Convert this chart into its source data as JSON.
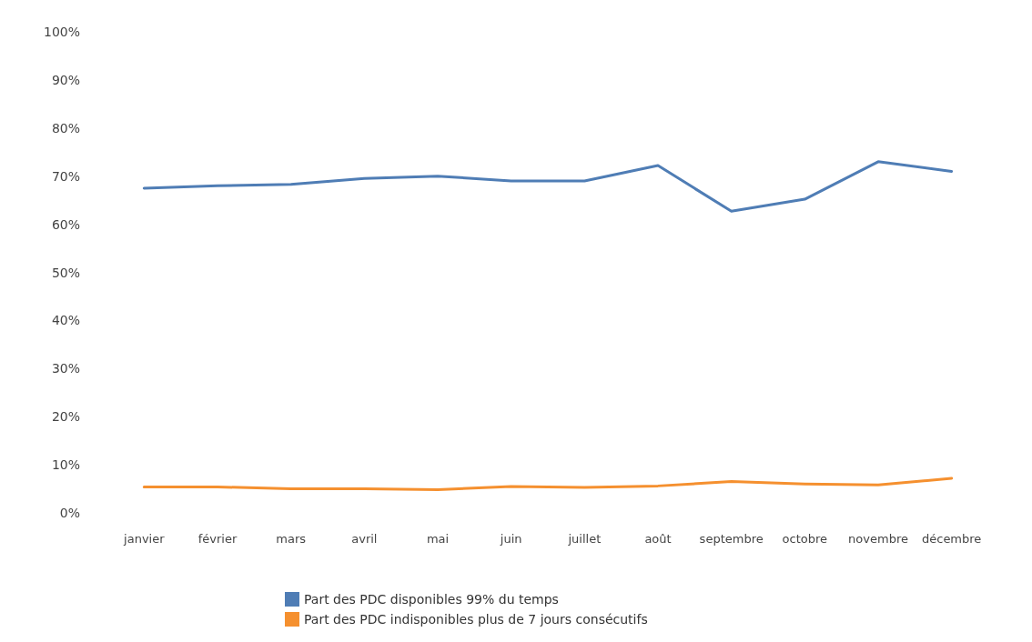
{
  "chart_data": {
    "type": "line",
    "categories": [
      "janvier",
      "février",
      "mars",
      "avril",
      "mai",
      "juin",
      "juillet",
      "août",
      "septembre",
      "octobre",
      "novembre",
      "décembre"
    ],
    "series": [
      {
        "name": "Part des PDC disponibles 99% du temps",
        "color": "#4f7db5",
        "values": [
          67.5,
          68,
          68.3,
          69.5,
          70,
          69,
          69,
          72.2,
          62.7,
          65.2,
          73,
          71
        ]
      },
      {
        "name": "Part des PDC indisponibles plus de 7 jours consécutifs",
        "color": "#f5902f",
        "values": [
          5.4,
          5.4,
          5,
          5,
          4.8,
          5.5,
          5.3,
          5.6,
          6.5,
          6,
          5.8,
          7.2
        ]
      }
    ],
    "ylim": [
      0,
      100
    ],
    "yticks": [
      {
        "value": 0,
        "label": "0%"
      },
      {
        "value": 10,
        "label": "10%"
      },
      {
        "value": 20,
        "label": "20%"
      },
      {
        "value": 30,
        "label": "30%"
      },
      {
        "value": 40,
        "label": "40%"
      },
      {
        "value": 50,
        "label": "50%"
      },
      {
        "value": 60,
        "label": "60%"
      },
      {
        "value": 70,
        "label": "70%"
      },
      {
        "value": 80,
        "label": "80%"
      },
      {
        "value": 90,
        "label": "90%"
      },
      {
        "value": 100,
        "label": "100%"
      }
    ],
    "grid": false,
    "legend": "bottom",
    "marker": "none",
    "line_style": "solid"
  }
}
